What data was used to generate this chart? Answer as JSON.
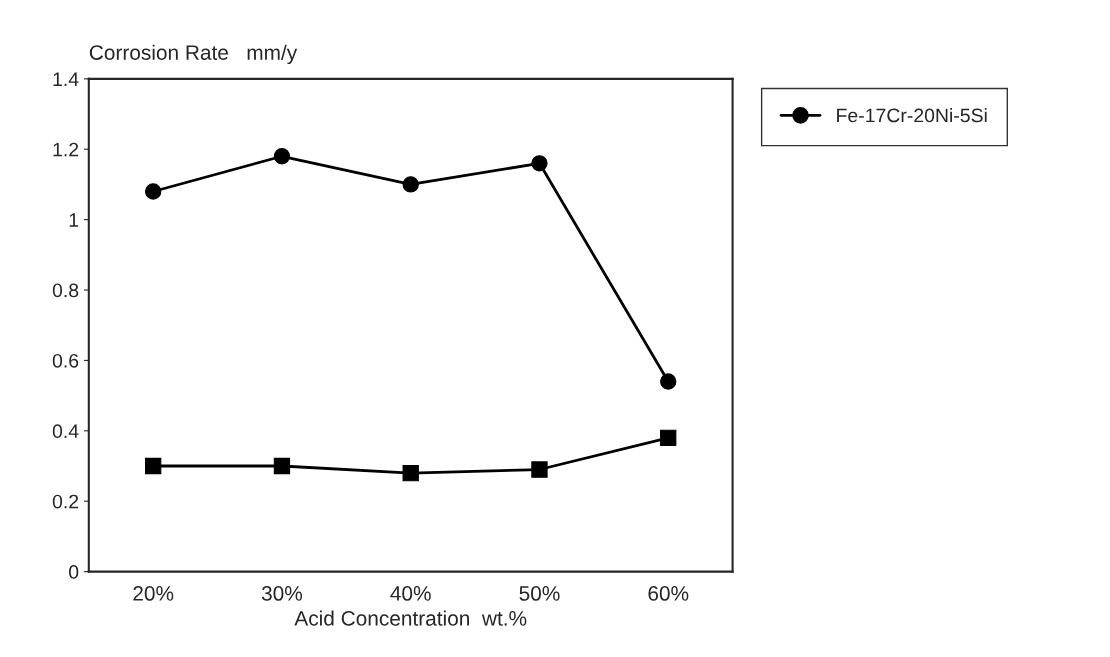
{
  "chart_data": {
    "type": "line",
    "ylabel": "Corrosion Rate   mm/y",
    "xlabel": "Acid Concentration  wt.%",
    "categories": [
      "20%",
      "30%",
      "40%",
      "50%",
      "60%"
    ],
    "series": [
      {
        "color": "#000000",
        "marker": "square",
        "values": [
          0.3,
          0.3,
          0.28,
          0.29,
          0.38
        ]
      },
      {
        "name": "Fe-17Cr-20Ni-5Si",
        "color": "#000000",
        "marker": "circle",
        "values": [
          1.08,
          1.18,
          1.1,
          1.16,
          0.54
        ]
      }
    ],
    "ylim": [
      0,
      1.4
    ],
    "yticks": [
      0,
      0.2,
      0.4,
      0.6,
      0.8,
      1,
      1.2,
      1.4
    ],
    "grid": false,
    "legend": "top right",
    "line_style": "solid"
  }
}
